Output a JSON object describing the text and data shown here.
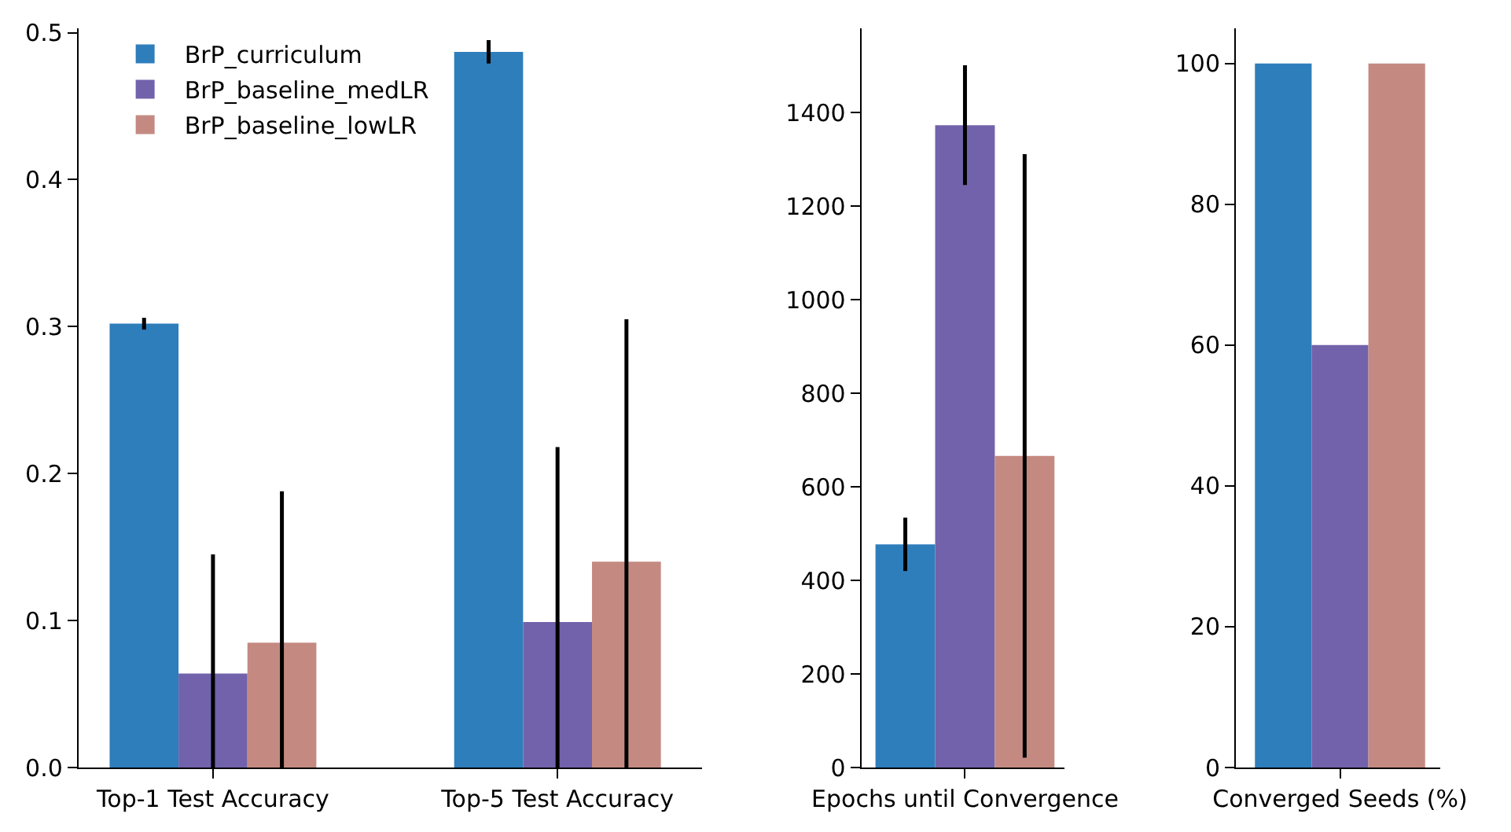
{
  "chart_data": [
    {
      "type": "bar",
      "categories": [
        "Top-1 Test Accuracy",
        "Top-5 Test Accuracy"
      ],
      "ylim": [
        0,
        0.503
      ],
      "yticks": [
        {
          "value": 0,
          "label": "0.0"
        },
        0.1,
        0.2,
        0.3,
        0.4,
        0.5
      ],
      "legend": "top left",
      "grid": false,
      "series": [
        {
          "name": "BrP_curriculum",
          "color": "#2e7ebc",
          "values": [
            0.302,
            0.487
          ],
          "errors": [
            0.004,
            0.008
          ]
        },
        {
          "name": "BrP_baseline_medLR",
          "color": "#7262ab",
          "values": [
            0.064,
            0.099
          ],
          "errors": [
            [
              0,
              0.145
            ],
            [
              0,
              0.218
            ]
          ]
        },
        {
          "name": "BrP_baseline_lowLR",
          "color": "#c48a82",
          "values": [
            0.085,
            0.14
          ],
          "errors": [
            [
              0,
              0.188
            ],
            [
              0,
              0.305
            ]
          ]
        }
      ]
    },
    {
      "type": "bar",
      "categories": [
        "Epochs until Convergence"
      ],
      "ylim": [
        0,
        1580
      ],
      "yticks": [
        0,
        200,
        400,
        600,
        800,
        1000,
        1200,
        1400
      ],
      "grid": false,
      "series": [
        {
          "color": "#2e7ebc",
          "values": [
            477
          ],
          "errors": [
            57
          ]
        },
        {
          "color": "#7262ab",
          "values": [
            1373
          ],
          "errors": [
            128
          ]
        },
        {
          "color": "#c48a82",
          "values": [
            666
          ],
          "errors": [
            645
          ]
        }
      ]
    },
    {
      "type": "bar",
      "categories": [
        "Converged Seeds (%)"
      ],
      "ylim": [
        0,
        105
      ],
      "yticks": [
        0,
        20,
        40,
        60,
        80,
        100
      ],
      "grid": false,
      "series": [
        {
          "color": "#2e7ebc",
          "values": [
            100
          ]
        },
        {
          "color": "#7262ab",
          "values": [
            60
          ]
        },
        {
          "color": "#c48a82",
          "values": [
            100
          ]
        }
      ]
    }
  ]
}
